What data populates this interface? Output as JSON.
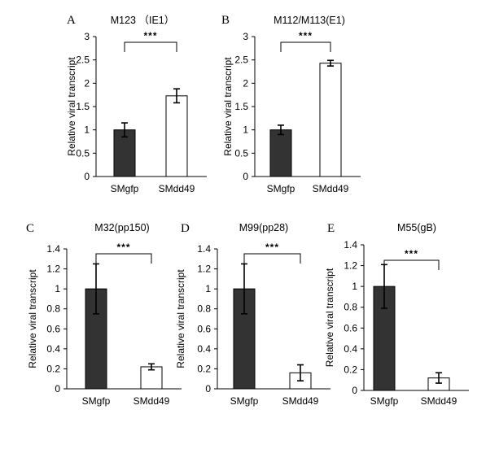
{
  "chart_data": [
    {
      "type": "bar",
      "panel_label": "A",
      "title": "M123 （IE1）",
      "ylabel": "Relative viral transcript",
      "categories": [
        "SMgfp",
        "SMdd49"
      ],
      "values": [
        1.0,
        1.73
      ],
      "errors": [
        0.15,
        0.15
      ],
      "ylim": [
        0,
        3
      ],
      "yticks": [
        "0",
        "0.5",
        "1",
        "1.5",
        "2",
        "2.5",
        "3"
      ],
      "significance": "***",
      "bar_fills": [
        "#333333",
        "#ffffff"
      ]
    },
    {
      "type": "bar",
      "panel_label": "B",
      "title": "M112/M113(E1)",
      "ylabel": "Relative viral transcript",
      "categories": [
        "SMgfp",
        "SMdd49"
      ],
      "values": [
        1.0,
        2.43
      ],
      "errors": [
        0.1,
        0.06
      ],
      "ylim": [
        0,
        3
      ],
      "yticks": [
        "0",
        "0.5",
        "1",
        "1.5",
        "2",
        "2.5",
        "3"
      ],
      "significance": "***",
      "bar_fills": [
        "#333333",
        "#ffffff"
      ]
    },
    {
      "type": "bar",
      "panel_label": "C",
      "title": "M32(pp150)",
      "ylabel": "Relative viral transcript",
      "categories": [
        "SMgfp",
        "SMdd49"
      ],
      "values": [
        1.0,
        0.22
      ],
      "errors": [
        0.25,
        0.03
      ],
      "ylim": [
        0,
        1.4
      ],
      "yticks": [
        "0",
        "0.2",
        "0.4",
        "0.6",
        "0.8",
        "1",
        "1.2",
        "1.4"
      ],
      "significance": "***",
      "bar_fills": [
        "#333333",
        "#ffffff"
      ]
    },
    {
      "type": "bar",
      "panel_label": "D",
      "title": "M99(pp28)",
      "ylabel": "Relative viral transcript",
      "categories": [
        "SMgfp",
        "SMdd49"
      ],
      "values": [
        1.0,
        0.16
      ],
      "errors": [
        0.25,
        0.08
      ],
      "ylim": [
        0,
        1.4
      ],
      "yticks": [
        "0",
        "0.2",
        "0.4",
        "0.6",
        "0.8",
        "1",
        "1.2",
        "1.4"
      ],
      "significance": "***",
      "bar_fills": [
        "#333333",
        "#ffffff"
      ]
    },
    {
      "type": "bar",
      "panel_label": "E",
      "title": "M55(gB)",
      "ylabel": "Relative viral transcript",
      "categories": [
        "SMgfp",
        "SMdd49"
      ],
      "values": [
        1.0,
        0.12
      ],
      "errors": [
        0.21,
        0.05
      ],
      "ylim": [
        0,
        1.4
      ],
      "yticks": [
        "0",
        "0.2",
        "0.4",
        "0.6",
        "0.8",
        "1",
        "1.2",
        "1.4"
      ],
      "significance": "***",
      "bar_fills": [
        "#333333",
        "#ffffff"
      ]
    }
  ]
}
